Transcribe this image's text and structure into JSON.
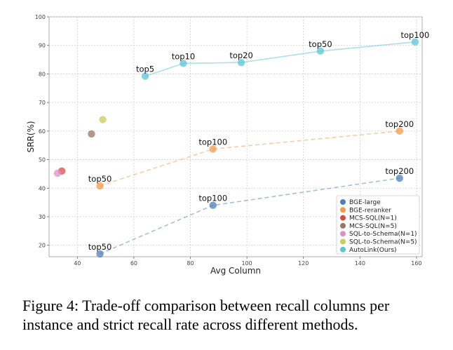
{
  "caption": "Figure 4: Trade-off comparison between recall columns per instance and strict recall rate across different methods.",
  "chart_data": {
    "type": "scatter",
    "xlabel": "Avg Column",
    "ylabel": "SRR(%)",
    "xlim": [
      30,
      162
    ],
    "ylim": [
      16,
      100
    ],
    "xticks": [
      40,
      60,
      80,
      100,
      120,
      140,
      160
    ],
    "yticks": [
      20,
      30,
      40,
      50,
      60,
      70,
      80,
      90,
      100
    ],
    "grid": true,
    "legend_position": "bottom-right",
    "series": [
      {
        "name": "BGE-large",
        "color": "#4f7fb8",
        "line": "dashed",
        "points": [
          {
            "x": 48,
            "y": 17,
            "label": "top50"
          },
          {
            "x": 88,
            "y": 34,
            "label": "top100"
          },
          {
            "x": 154,
            "y": 43.5,
            "label": "top200"
          }
        ]
      },
      {
        "name": "BGE-reranker",
        "color": "#f59a4a",
        "line": "dashed",
        "points": [
          {
            "x": 48,
            "y": 40.8,
            "label": "top50"
          },
          {
            "x": 88,
            "y": 53.7,
            "label": "top100"
          },
          {
            "x": 154,
            "y": 60,
            "label": "top200"
          }
        ]
      },
      {
        "name": "MCS-SQL(N=1)",
        "color": "#d94a45",
        "line": "none",
        "points": [
          {
            "x": 34.5,
            "y": 46
          }
        ]
      },
      {
        "name": "MCS-SQL(N=5)",
        "color": "#9a7468",
        "line": "none",
        "points": [
          {
            "x": 45,
            "y": 59
          }
        ]
      },
      {
        "name": "SQL-to-Schema(N=1)",
        "color": "#e08ccb",
        "line": "none",
        "points": [
          {
            "x": 33,
            "y": 45.2
          }
        ]
      },
      {
        "name": "SQL-to-Schema(N=5)",
        "color": "#c9cc5e",
        "line": "none",
        "points": [
          {
            "x": 49,
            "y": 64
          }
        ]
      },
      {
        "name": "AutoLink(Ours)",
        "color": "#5bc4d6",
        "line": "solid",
        "points": [
          {
            "x": 64,
            "y": 79.2,
            "label": "top5"
          },
          {
            "x": 77.5,
            "y": 83.7,
            "label": "top10"
          },
          {
            "x": 98,
            "y": 84,
            "label": "top20"
          },
          {
            "x": 126,
            "y": 88,
            "label": "top50"
          },
          {
            "x": 159.5,
            "y": 91.2,
            "label": "top100"
          }
        ]
      }
    ]
  }
}
